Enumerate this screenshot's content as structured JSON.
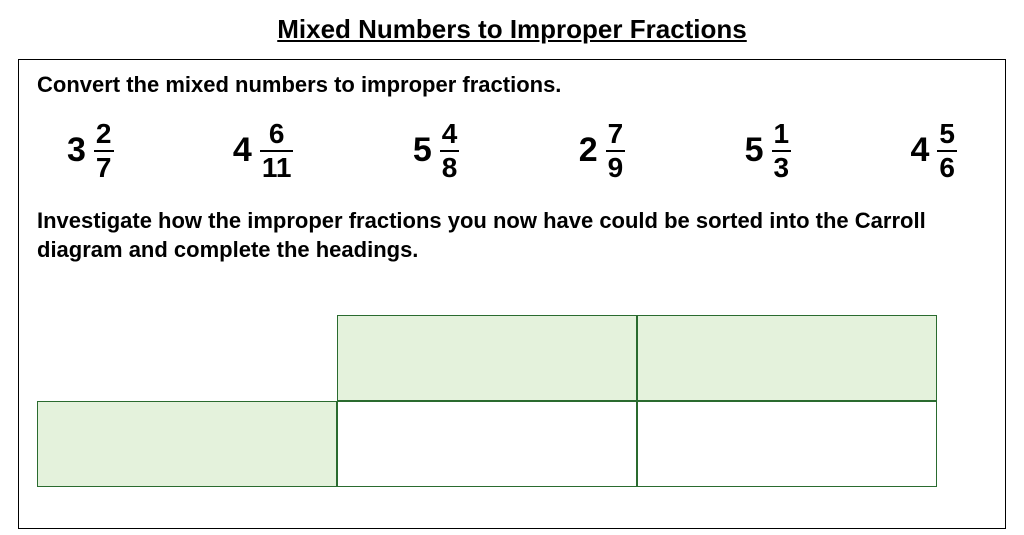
{
  "title": "Mixed Numbers to Improper Fractions",
  "instruction1": "Convert the mixed numbers to improper fractions.",
  "instruction2": "Investigate how the improper fractions you now have could be sorted into the Carroll diagram and complete the headings.",
  "mixed_numbers": [
    {
      "whole": "3",
      "numerator": "2",
      "denominator": "7"
    },
    {
      "whole": "4",
      "numerator": "6",
      "denominator": "11"
    },
    {
      "whole": "5",
      "numerator": "4",
      "denominator": "8"
    },
    {
      "whole": "2",
      "numerator": "7",
      "denominator": "9"
    },
    {
      "whole": "5",
      "numerator": "1",
      "denominator": "3"
    },
    {
      "whole": "4",
      "numerator": "5",
      "denominator": "6"
    }
  ],
  "carroll": {
    "header_fill": "#e4f2dc",
    "cell_fill": "#ffffff",
    "border_color": "#2a6b2f",
    "columns": 2,
    "rows_visible_partial": 1
  },
  "colors": {
    "text": "#000000",
    "background": "#ffffff",
    "cell_green": "#e4f2dc",
    "cell_border": "#2a6b2f"
  },
  "typography": {
    "title_fontsize": 26,
    "instruction_fontsize": 22,
    "whole_fontsize": 34,
    "fraction_fontsize": 28,
    "font_weight": "bold",
    "font_family": "Arial"
  }
}
